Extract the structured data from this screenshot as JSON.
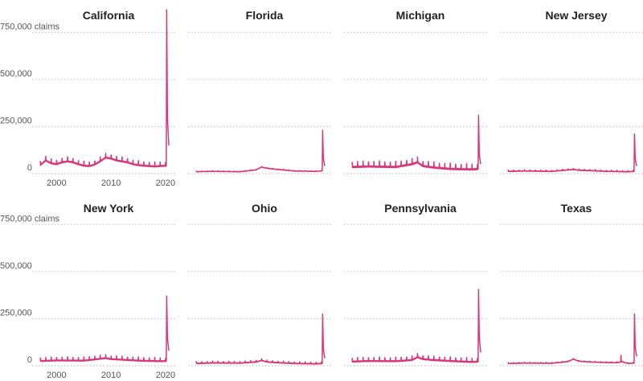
{
  "chart_data": {
    "type": "line",
    "layout": "small-multiples",
    "color": "#d6387a",
    "y_axis": {
      "ylim": [
        0,
        875000
      ],
      "ticks": [
        0,
        250000,
        500000,
        750000
      ],
      "tick_labels": [
        "0",
        "250,000",
        "500,000",
        "750,000 claims"
      ],
      "grid": true
    },
    "x_axis": {
      "xlim": [
        1997,
        2020.6
      ],
      "ticks": [
        2000,
        2010,
        2020
      ],
      "tick_labels": [
        "2000",
        "2010",
        "2020"
      ]
    },
    "series": [
      {
        "name": "California",
        "keypoints": [
          [
            1997,
            45000
          ],
          [
            1998,
            70000
          ],
          [
            1999,
            55000
          ],
          [
            2000,
            50000
          ],
          [
            2001,
            60000
          ],
          [
            2002,
            65000
          ],
          [
            2003,
            60000
          ],
          [
            2004,
            50000
          ],
          [
            2005,
            42000
          ],
          [
            2006,
            40000
          ],
          [
            2007,
            48000
          ],
          [
            2008,
            65000
          ],
          [
            2009,
            85000
          ],
          [
            2010,
            80000
          ],
          [
            2011,
            70000
          ],
          [
            2012,
            65000
          ],
          [
            2013,
            60000
          ],
          [
            2014,
            50000
          ],
          [
            2015,
            45000
          ],
          [
            2016,
            42000
          ],
          [
            2017,
            40000
          ],
          [
            2018,
            38000
          ],
          [
            2019,
            40000
          ],
          [
            2020.15,
            42000
          ],
          [
            2020.22,
            870000
          ],
          [
            2020.35,
            300000
          ],
          [
            2020.6,
            150000
          ]
        ],
        "spike_amp": 22000,
        "spike_period": 1
      },
      {
        "name": "Florida",
        "keypoints": [
          [
            1997,
            10000
          ],
          [
            2000,
            12000
          ],
          [
            2005,
            10000
          ],
          [
            2008,
            20000
          ],
          [
            2009,
            35000
          ],
          [
            2010,
            28000
          ],
          [
            2012,
            22000
          ],
          [
            2015,
            14000
          ],
          [
            2019,
            12000
          ],
          [
            2020.15,
            15000
          ],
          [
            2020.22,
            230000
          ],
          [
            2020.35,
            80000
          ],
          [
            2020.6,
            40000
          ]
        ],
        "spike_amp": 3000,
        "spike_period": 1
      },
      {
        "name": "Michigan",
        "keypoints": [
          [
            1997,
            35000
          ],
          [
            2000,
            38000
          ],
          [
            2005,
            35000
          ],
          [
            2008,
            50000
          ],
          [
            2009,
            60000
          ],
          [
            2010,
            40000
          ],
          [
            2012,
            32000
          ],
          [
            2015,
            25000
          ],
          [
            2019,
            22000
          ],
          [
            2020.15,
            25000
          ],
          [
            2020.22,
            310000
          ],
          [
            2020.35,
            100000
          ],
          [
            2020.6,
            50000
          ]
        ],
        "spike_amp": 28000,
        "spike_period": 1
      },
      {
        "name": "New Jersey",
        "keypoints": [
          [
            1997,
            12000
          ],
          [
            2000,
            14000
          ],
          [
            2005,
            12000
          ],
          [
            2009,
            22000
          ],
          [
            2010,
            18000
          ],
          [
            2012,
            16000
          ],
          [
            2015,
            12000
          ],
          [
            2019,
            10000
          ],
          [
            2020.15,
            12000
          ],
          [
            2020.22,
            210000
          ],
          [
            2020.35,
            80000
          ],
          [
            2020.6,
            40000
          ]
        ],
        "spike_amp": 6000,
        "spike_period": 1
      },
      {
        "name": "New York",
        "keypoints": [
          [
            1997,
            25000
          ],
          [
            2000,
            28000
          ],
          [
            2005,
            27000
          ],
          [
            2009,
            40000
          ],
          [
            2010,
            35000
          ],
          [
            2012,
            32000
          ],
          [
            2015,
            27000
          ],
          [
            2019,
            24000
          ],
          [
            2020.15,
            25000
          ],
          [
            2020.22,
            370000
          ],
          [
            2020.35,
            150000
          ],
          [
            2020.6,
            80000
          ]
        ],
        "spike_amp": 18000,
        "spike_period": 1
      },
      {
        "name": "Ohio",
        "keypoints": [
          [
            1997,
            12000
          ],
          [
            2000,
            15000
          ],
          [
            2005,
            14000
          ],
          [
            2008,
            20000
          ],
          [
            2009,
            28000
          ],
          [
            2010,
            20000
          ],
          [
            2012,
            16000
          ],
          [
            2015,
            12000
          ],
          [
            2019,
            10000
          ],
          [
            2020.15,
            12000
          ],
          [
            2020.22,
            275000
          ],
          [
            2020.35,
            90000
          ],
          [
            2020.6,
            40000
          ]
        ],
        "spike_amp": 9000,
        "spike_period": 1
      },
      {
        "name": "Pennsylvania",
        "keypoints": [
          [
            1997,
            22000
          ],
          [
            2000,
            25000
          ],
          [
            2005,
            24000
          ],
          [
            2008,
            30000
          ],
          [
            2009,
            45000
          ],
          [
            2010,
            35000
          ],
          [
            2012,
            30000
          ],
          [
            2015,
            25000
          ],
          [
            2019,
            20000
          ],
          [
            2020.15,
            22000
          ],
          [
            2020.22,
            405000
          ],
          [
            2020.35,
            150000
          ],
          [
            2020.6,
            70000
          ]
        ],
        "spike_amp": 20000,
        "spike_period": 1
      },
      {
        "name": "Texas",
        "keypoints": [
          [
            1997,
            12000
          ],
          [
            2000,
            14000
          ],
          [
            2005,
            13000
          ],
          [
            2008,
            22000
          ],
          [
            2009,
            35000
          ],
          [
            2010,
            24000
          ],
          [
            2012,
            20000
          ],
          [
            2015,
            17000
          ],
          [
            2017,
            16000
          ],
          [
            2017.7,
            20000
          ],
          [
            2017.72,
            60000
          ],
          [
            2017.8,
            22000
          ],
          [
            2019,
            12000
          ],
          [
            2020.15,
            14000
          ],
          [
            2020.22,
            275000
          ],
          [
            2020.35,
            100000
          ],
          [
            2020.6,
            50000
          ]
        ],
        "spike_amp": 4000,
        "spike_period": 1
      }
    ]
  }
}
